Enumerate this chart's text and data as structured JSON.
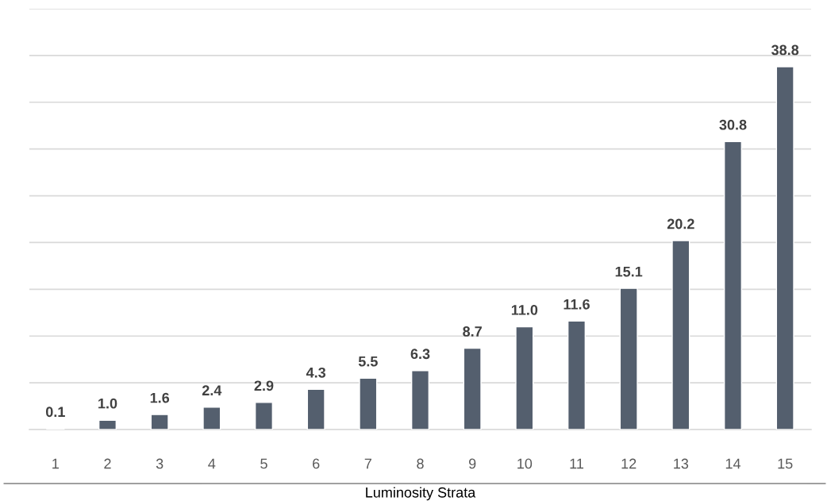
{
  "chart_data": {
    "type": "bar",
    "xlabel": "Luminosity Strata",
    "categories": [
      "1",
      "2",
      "3",
      "4",
      "5",
      "6",
      "7",
      "8",
      "9",
      "10",
      "11",
      "12",
      "13",
      "14",
      "15"
    ],
    "values": [
      0.1,
      1.0,
      1.6,
      2.4,
      2.9,
      4.3,
      5.5,
      6.3,
      8.7,
      11.0,
      11.6,
      15.1,
      20.2,
      30.8,
      38.8
    ],
    "color": "#545f6e",
    "value_labels": [
      "0.1",
      "1.0",
      "1.6",
      "2.4",
      "2.9",
      "4.3",
      "5.5",
      "6.3",
      "8.7",
      "11.0",
      "11.6",
      "15.1",
      "20.2",
      "30.8",
      "38.8"
    ],
    "ylim": [
      0,
      45
    ],
    "yticks": [
      0,
      {
        "value": 5,
        "label": null
      },
      {
        "value": 10,
        "label": null
      },
      {
        "value": 15,
        "label": null
      },
      {
        "value": 20,
        "label": null
      },
      {
        "value": 25,
        "label": null
      },
      {
        "value": 30,
        "label": null
      },
      {
        "value": 35,
        "label": null
      },
      {
        "value": 40,
        "label": null
      },
      {
        "value": 45,
        "label": null
      }
    ],
    "grid": "y",
    "tick_labels": "x"
  }
}
